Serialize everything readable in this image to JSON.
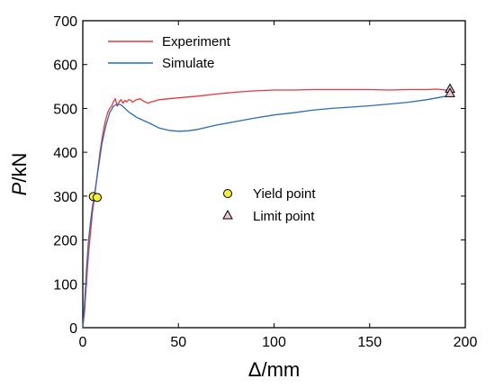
{
  "chart_data": {
    "type": "line",
    "xlabel": "Δ/mm",
    "ylabel_italic": "P",
    "ylabel_rest": "/kN",
    "xlim": [
      0,
      200
    ],
    "ylim": [
      0,
      700
    ],
    "xticks": [
      0,
      50,
      100,
      150,
      200
    ],
    "yticks": [
      0,
      100,
      200,
      300,
      400,
      500,
      600,
      700
    ],
    "grid": false,
    "legend_position": "top-left",
    "series": [
      {
        "name": "Experiment",
        "color": "#e8383d",
        "x": [
          0,
          1,
          2,
          3,
          4,
          5,
          6,
          7,
          8,
          9,
          10,
          11,
          12,
          13,
          14,
          15,
          16,
          17,
          18,
          19,
          20,
          21,
          22,
          23,
          24,
          25,
          26,
          28,
          30,
          32,
          34,
          36,
          40,
          45,
          50,
          60,
          70,
          80,
          90,
          100,
          110,
          120,
          130,
          140,
          150,
          160,
          170,
          180,
          185,
          190,
          192
        ],
        "y": [
          0,
          40,
          110,
          170,
          215,
          260,
          295,
          330,
          365,
          400,
          430,
          455,
          475,
          490,
          500,
          505,
          515,
          522,
          505,
          515,
          520,
          512,
          518,
          515,
          520,
          519,
          514,
          520,
          522,
          516,
          512,
          515,
          520,
          522,
          524,
          528,
          533,
          537,
          540,
          542,
          542,
          543,
          543,
          543,
          543,
          542,
          543,
          543,
          544,
          542,
          542
        ]
      },
      {
        "name": "Simulate",
        "color": "#2b6db0",
        "x": [
          0,
          1,
          2,
          3,
          4,
          5,
          6,
          8,
          10,
          12,
          14,
          16,
          18,
          20,
          22,
          24,
          26,
          28,
          30,
          35,
          40,
          45,
          50,
          55,
          60,
          70,
          80,
          90,
          100,
          110,
          120,
          130,
          140,
          150,
          160,
          170,
          180,
          190,
          192
        ],
        "y": [
          0,
          60,
          140,
          200,
          240,
          275,
          300,
          360,
          420,
          460,
          490,
          505,
          510,
          508,
          500,
          492,
          486,
          480,
          476,
          466,
          455,
          450,
          448,
          449,
          452,
          462,
          470,
          478,
          485,
          490,
          496,
          500,
          503,
          506,
          510,
          514,
          520,
          528,
          530
        ]
      }
    ],
    "markers": [
      {
        "label": "Yield point",
        "shape": "circle",
        "fill": "#f5ef3b",
        "points": [
          [
            5.5,
            299
          ],
          [
            7.5,
            297
          ]
        ]
      },
      {
        "label": "Limit point",
        "shape": "triangle",
        "fill": "#f2c4d4",
        "points": [
          [
            192,
            545
          ],
          [
            192,
            535
          ]
        ]
      }
    ]
  }
}
